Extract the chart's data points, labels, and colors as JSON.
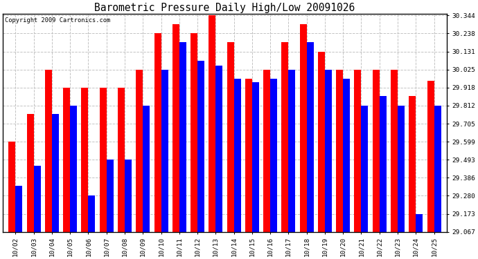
{
  "title": "Barometric Pressure Daily High/Low 20091026",
  "copyright": "Copyright 2009 Cartronics.com",
  "dates": [
    "10/02",
    "10/03",
    "10/04",
    "10/05",
    "10/06",
    "10/07",
    "10/08",
    "10/09",
    "10/10",
    "10/11",
    "10/12",
    "10/13",
    "10/14",
    "10/15",
    "10/16",
    "10/17",
    "10/18",
    "10/19",
    "10/20",
    "10/21",
    "10/22",
    "10/23",
    "10/24",
    "10/25"
  ],
  "highs": [
    29.599,
    29.762,
    30.025,
    29.918,
    29.918,
    29.918,
    29.918,
    30.025,
    30.238,
    30.291,
    30.238,
    30.344,
    30.185,
    29.97,
    30.025,
    30.185,
    30.291,
    30.131,
    30.025,
    30.025,
    30.025,
    30.025,
    29.87,
    29.96
  ],
  "lows": [
    29.34,
    29.455,
    29.762,
    29.812,
    29.28,
    29.493,
    29.493,
    29.812,
    30.025,
    30.185,
    30.075,
    30.05,
    29.97,
    29.95,
    29.97,
    30.025,
    30.185,
    30.025,
    29.97,
    29.812,
    29.87,
    29.812,
    29.173,
    29.812
  ],
  "ylim_min": 29.067,
  "ylim_max": 30.344,
  "yticks": [
    29.067,
    29.173,
    29.28,
    29.386,
    29.493,
    29.599,
    29.705,
    29.812,
    29.918,
    30.025,
    30.131,
    30.238,
    30.344
  ],
  "bar_width": 0.38,
  "high_color": "#ff0000",
  "low_color": "#0000ff",
  "bg_color": "#ffffff",
  "grid_color": "#c0c0c0",
  "title_fontsize": 11,
  "tick_fontsize": 7,
  "copyright_fontsize": 6.5
}
